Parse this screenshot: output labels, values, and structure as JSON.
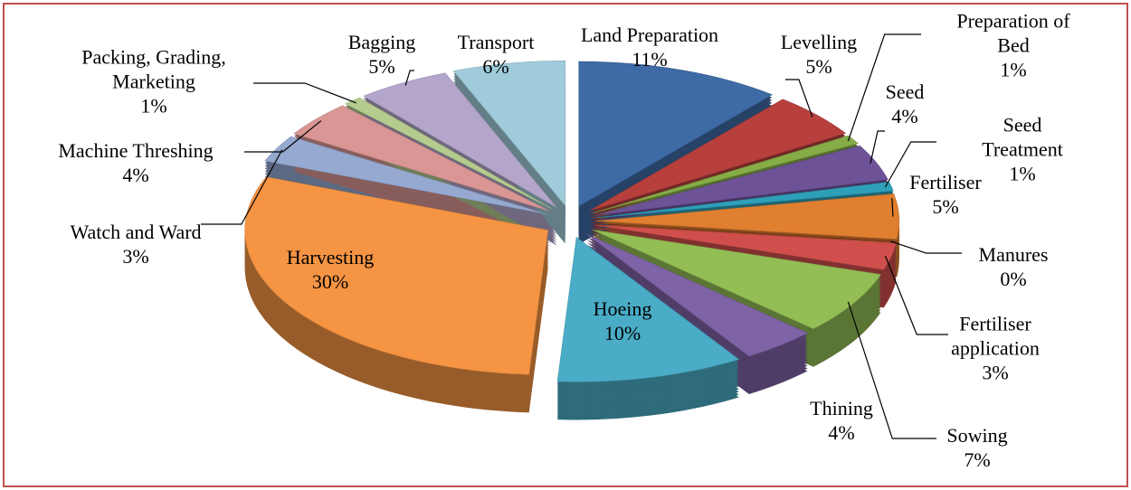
{
  "chart_data": {
    "type": "pie3d",
    "categories": [
      "Land Preparation",
      "Levelling",
      "Preparation of Bed",
      "Seed",
      "Seed Treatment",
      "Fertiliser",
      "Manures",
      "Fertiliser application",
      "Sowing",
      "Thining",
      "Hoeing",
      "Harvesting",
      "Watch and Ward",
      "Machine Threshing",
      "Packing, Grading, Marketing",
      "Bagging",
      "Transport"
    ],
    "values": [
      11,
      5,
      1,
      4,
      1,
      5,
      0,
      3,
      7,
      4,
      10,
      30,
      3,
      4,
      1,
      5,
      6
    ],
    "value_labels": [
      "11%",
      "5%",
      "1%",
      "4%",
      "1%",
      "5%",
      "0%",
      "3%",
      "7%",
      "4%",
      "10%",
      "30%",
      "3%",
      "4%",
      "1%",
      "5%",
      "6%"
    ],
    "colors": [
      "#3E6AA6",
      "#B7403D",
      "#85AC46",
      "#6E5298",
      "#2E9FB8",
      "#E07F2F",
      "#7F1F1F",
      "#D04F4C",
      "#93BD55",
      "#7E63A6",
      "#4AACC6",
      "#F59443",
      "#95A9D1",
      "#D99694",
      "#B5CC8E",
      "#B3A6CA",
      "#9FCBDA"
    ]
  }
}
